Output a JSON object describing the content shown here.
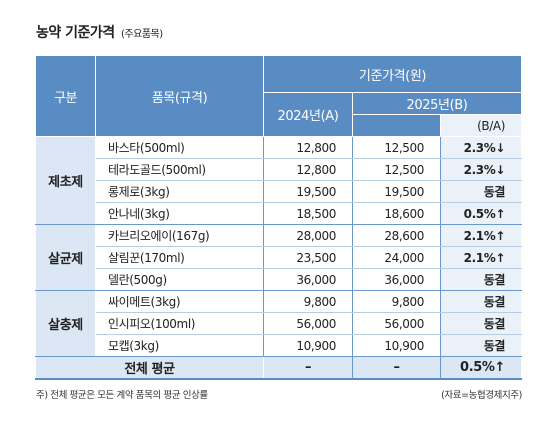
{
  "title": "농약 기준가격",
  "subtitle": "(주요품목)",
  "table": {
    "header": {
      "category": "구분",
      "item": "품목(규격)",
      "price": "기준가격(원)",
      "year_a": "2024년(A)",
      "year_b": "2025년(B)",
      "ratio": "(B/A)"
    },
    "groups": [
      {
        "name": "제초제",
        "rows": [
          [
            "바스타(500ml)",
            "12,800",
            "12,500",
            "2.3%↓"
          ],
          [
            "테라도골드(500ml)",
            "12,800",
            "12,500",
            "2.3%↓"
          ],
          [
            "롱제로(3kg)",
            "19,500",
            "19,500",
            "동결"
          ],
          [
            "안나네(3kg)",
            "18,500",
            "18,600",
            "0.5%↑"
          ]
        ]
      },
      {
        "name": "살균제",
        "rows": [
          [
            "카브리오에이(167g)",
            "28,000",
            "28,600",
            "2.1%↑"
          ],
          [
            "살림꾼(170ml)",
            "23,500",
            "24,000",
            "2.1%↑"
          ],
          [
            "델란(500g)",
            "36,000",
            "36,000",
            "동결"
          ]
        ]
      },
      {
        "name": "살충제",
        "rows": [
          [
            "싸이메트(3kg)",
            "9,800",
            "9,800",
            "동결"
          ],
          [
            "인시피오(100ml)",
            "56,000",
            "56,000",
            "동결"
          ],
          [
            "모캡(3kg)",
            "10,900",
            "10,900",
            "동결"
          ]
        ]
      }
    ],
    "total": [
      "전체 평균",
      "–",
      "–",
      "0.5%↑"
    ]
  },
  "footnote": "주) 전체 평균은 모든 계약 품목의 평균 인상률",
  "source": "(자료=농협경제지주)"
}
